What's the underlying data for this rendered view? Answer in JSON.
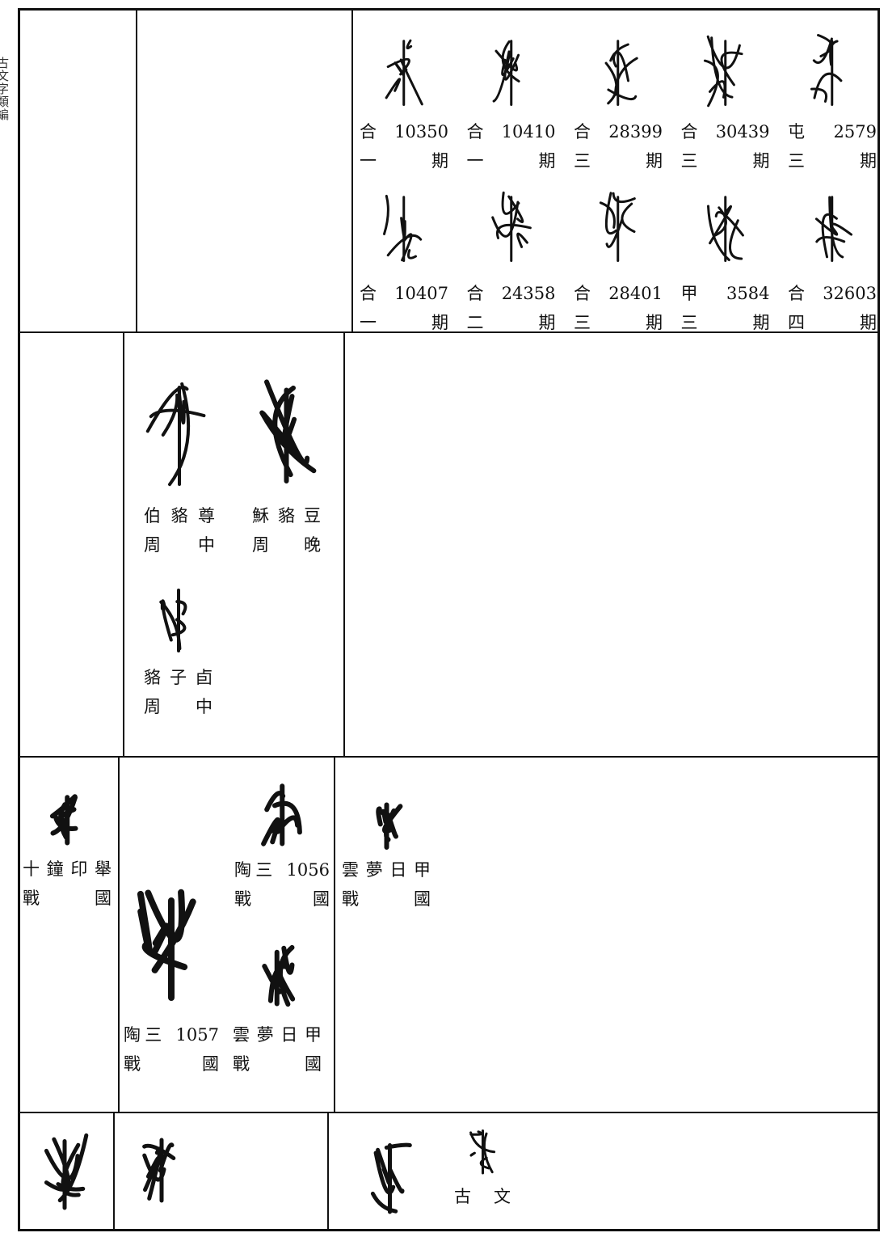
{
  "side_label": "古文字類編",
  "rows": [
    {
      "col3": [
        {
          "source": "合 10350",
          "period": "一期"
        },
        {
          "source": "合 10410",
          "period": "一期"
        },
        {
          "source": "合 28399",
          "period": "三期"
        },
        {
          "source": "合 30439",
          "period": "三期"
        },
        {
          "source": "屯 2579",
          "period": "三期"
        },
        {
          "source": "合 10407",
          "period": "一期"
        },
        {
          "source": "合 24358",
          "period": "二期"
        },
        {
          "source": "合 28401",
          "period": "三期"
        },
        {
          "source": "甲 3584",
          "period": "三期"
        },
        {
          "source": "合 32603",
          "period": "四期"
        }
      ]
    },
    {
      "col2": [
        {
          "source": "伯貉尊",
          "period": "周中"
        },
        {
          "source": "穌貉豆",
          "period": "周晚"
        },
        {
          "source": "貉子卣",
          "period": "周中"
        }
      ]
    },
    {
      "col1": [
        {
          "source": "十鐘印舉",
          "period": "戰國"
        }
      ],
      "col2": [
        {
          "source": "陶三 1056",
          "period": "戰國"
        },
        {
          "source": "陶三 1057",
          "period": "戰國"
        },
        {
          "source": "雲夢日甲",
          "period": "戰國"
        }
      ],
      "col3": [
        {
          "source": "雲夢日甲",
          "period": "戰國"
        }
      ]
    },
    {
      "col3": [
        {
          "source": "古文"
        }
      ]
    }
  ]
}
